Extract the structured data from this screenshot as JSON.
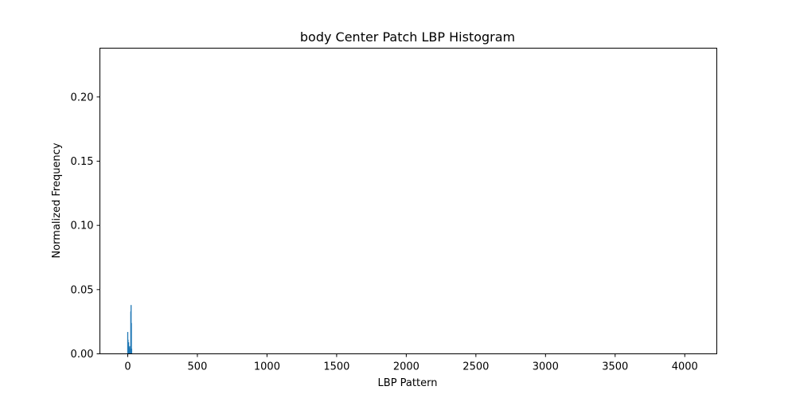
{
  "chart_data": {
    "type": "bar",
    "title": "body Center Patch LBP Histogram",
    "xlabel": "LBP Pattern",
    "ylabel": "Normalized Frequency",
    "xlim": [
      -200,
      4230
    ],
    "ylim": [
      0,
      0.238
    ],
    "xticks": [
      0,
      500,
      1000,
      1500,
      2000,
      2500,
      3000,
      3500,
      4000
    ],
    "yticks": [
      0.0,
      0.05,
      0.1,
      0.15,
      0.2
    ],
    "xtick_labels": [
      "0",
      "500",
      "1000",
      "1500",
      "2000",
      "2500",
      "3000",
      "3500",
      "4000"
    ],
    "ytick_labels": [
      "0.00",
      "0.05",
      "0.10",
      "0.15",
      "0.20"
    ],
    "grid": false,
    "bar_color": "#1f77b4",
    "x": [
      0,
      2,
      4,
      6,
      8,
      10,
      12,
      14,
      16,
      18,
      20,
      22,
      24,
      26,
      28
    ],
    "values": [
      0.017,
      0.011,
      0.004,
      0.009,
      0.003,
      0.005,
      0.004,
      0.006,
      0.004,
      0.003,
      0.004,
      0.033,
      0.038,
      0.024,
      0.004
    ]
  }
}
